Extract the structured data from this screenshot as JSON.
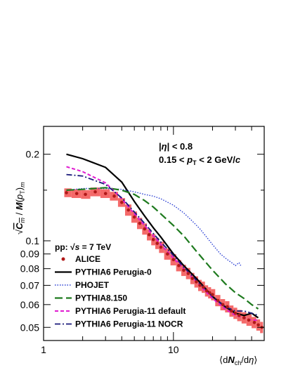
{
  "chart_data": {
    "type": "line",
    "xscale": "log",
    "yscale": "log",
    "xlim": [
      1,
      50
    ],
    "ylim": [
      0.045,
      0.25
    ],
    "x_ticks": [
      {
        "v": 1,
        "label": "1"
      },
      {
        "v": 10,
        "label": "10"
      }
    ],
    "y_ticks": [
      {
        "v": 0.05,
        "label": "0.05"
      },
      {
        "v": 0.06,
        "label": "0.06"
      },
      {
        "v": 0.07,
        "label": "0.07"
      },
      {
        "v": 0.08,
        "label": "0.08"
      },
      {
        "v": 0.09,
        "label": "0.09"
      },
      {
        "v": 0.1,
        "label": "0.1"
      },
      {
        "v": 0.2,
        "label": "0.2"
      }
    ],
    "x_minor": [
      2,
      3,
      4,
      5,
      6,
      7,
      8,
      9,
      20,
      30,
      40
    ],
    "y_minor": [
      0.15
    ],
    "xlabel": "⟨dN_ch/dη⟩",
    "ylabel": "√C_m / M(p_T)_m",
    "annotations": [
      "|η| < 0.8",
      "0.15 < p_T < 2 GeV/c"
    ],
    "legend_title": "pp:   √s = 7 TeV",
    "legend_position": "bottom-left",
    "data": {
      "name": "ALICE",
      "color": "#b01818",
      "band_color": "#f46a6a",
      "points": [
        [
          1.5,
          0.147
        ],
        [
          1.8,
          0.146
        ],
        [
          2.1,
          0.145
        ],
        [
          2.5,
          0.148
        ],
        [
          3.0,
          0.146
        ],
        [
          3.5,
          0.143
        ],
        [
          4.0,
          0.136
        ],
        [
          4.5,
          0.128
        ],
        [
          5.0,
          0.121
        ],
        [
          5.5,
          0.115
        ],
        [
          6.0,
          0.11
        ],
        [
          6.5,
          0.105
        ],
        [
          7.0,
          0.101
        ],
        [
          7.5,
          0.098
        ],
        [
          8.0,
          0.095
        ],
        [
          9.0,
          0.09
        ],
        [
          10.0,
          0.086
        ],
        [
          11.0,
          0.082
        ],
        [
          12.0,
          0.079
        ],
        [
          13.0,
          0.077
        ],
        [
          14.0,
          0.074
        ],
        [
          15.0,
          0.072
        ],
        [
          16.0,
          0.07
        ],
        [
          17.0,
          0.069
        ],
        [
          18.0,
          0.067
        ],
        [
          19.0,
          0.066
        ],
        [
          20.0,
          0.065
        ],
        [
          22.0,
          0.062
        ],
        [
          24.0,
          0.06
        ],
        [
          26.0,
          0.059
        ],
        [
          28.0,
          0.057
        ],
        [
          30.0,
          0.056
        ],
        [
          32.0,
          0.055
        ],
        [
          35.0,
          0.054
        ],
        [
          38.0,
          0.053
        ],
        [
          42.0,
          0.052
        ],
        [
          45.0,
          0.051
        ],
        [
          48.0,
          0.05
        ]
      ]
    },
    "series": [
      {
        "name": "PYTHIA6 Perugia-0",
        "color": "#000000",
        "dash": "",
        "width": 2.2,
        "points": [
          [
            1.5,
            0.2
          ],
          [
            2.0,
            0.193
          ],
          [
            3.0,
            0.18
          ],
          [
            4.0,
            0.16
          ],
          [
            5.0,
            0.137
          ],
          [
            6.0,
            0.122
          ],
          [
            7.0,
            0.111
          ],
          [
            8.0,
            0.103
          ],
          [
            10.0,
            0.09
          ],
          [
            12.0,
            0.082
          ],
          [
            15.0,
            0.074
          ],
          [
            20.0,
            0.064
          ],
          [
            25.0,
            0.059
          ],
          [
            30.0,
            0.056
          ],
          [
            35.0,
            0.055
          ],
          [
            40.0,
            0.056
          ],
          [
            45.0,
            0.054
          ]
        ]
      },
      {
        "name": "PHOJET",
        "color": "#2a3fd4",
        "dash": "1.5,2",
        "width": 1.4,
        "points": [
          [
            1.5,
            0.15
          ],
          [
            2.0,
            0.152
          ],
          [
            3.0,
            0.152
          ],
          [
            4.0,
            0.151
          ],
          [
            5.0,
            0.148
          ],
          [
            6.0,
            0.145
          ],
          [
            7.0,
            0.143
          ],
          [
            8.0,
            0.14
          ],
          [
            10.0,
            0.133
          ],
          [
            12.0,
            0.125
          ],
          [
            14.0,
            0.117
          ],
          [
            16.0,
            0.11
          ],
          [
            18.0,
            0.103
          ],
          [
            20.0,
            0.097
          ],
          [
            23.0,
            0.09
          ],
          [
            26.0,
            0.086
          ],
          [
            28.0,
            0.084
          ],
          [
            30.0,
            0.082
          ],
          [
            32.0,
            0.084
          ],
          [
            33.0,
            0.082
          ]
        ]
      },
      {
        "name": "PYTHIA8.150",
        "color": "#1e7a1e",
        "dash": "11,5",
        "width": 2.2,
        "points": [
          [
            1.5,
            0.15
          ],
          [
            2.0,
            0.151
          ],
          [
            3.0,
            0.153
          ],
          [
            4.0,
            0.15
          ],
          [
            5.0,
            0.145
          ],
          [
            6.0,
            0.138
          ],
          [
            7.0,
            0.131
          ],
          [
            8.0,
            0.124
          ],
          [
            10.0,
            0.113
          ],
          [
            12.0,
            0.104
          ],
          [
            15.0,
            0.092
          ],
          [
            20.0,
            0.079
          ],
          [
            25.0,
            0.071
          ],
          [
            30.0,
            0.066
          ],
          [
            35.0,
            0.063
          ],
          [
            40.0,
            0.06
          ],
          [
            45.0,
            0.058
          ]
        ]
      },
      {
        "name": "PYTHIA6 Perugia-11 default",
        "color": "#e01ad0",
        "dash": "5,3",
        "width": 2.0,
        "points": [
          [
            1.5,
            0.181
          ],
          [
            2.0,
            0.174
          ],
          [
            3.0,
            0.159
          ],
          [
            4.0,
            0.14
          ],
          [
            5.0,
            0.124
          ],
          [
            6.0,
            0.113
          ],
          [
            7.0,
            0.104
          ],
          [
            8.0,
            0.097
          ],
          [
            10.0,
            0.087
          ],
          [
            12.0,
            0.08
          ],
          [
            15.0,
            0.072
          ],
          [
            20.0,
            0.063
          ],
          [
            25.0,
            0.058
          ],
          [
            30.0,
            0.055
          ],
          [
            35.0,
            0.054
          ],
          [
            40.0,
            0.053
          ],
          [
            45.0,
            0.053
          ]
        ]
      },
      {
        "name": "PYTHIA6 Perugia-11 NOCR",
        "color": "#1a1a7a",
        "dash": "8,3,2,3",
        "width": 1.8,
        "points": [
          [
            1.5,
            0.17
          ],
          [
            2.0,
            0.168
          ],
          [
            3.0,
            0.157
          ],
          [
            4.0,
            0.141
          ],
          [
            5.0,
            0.126
          ],
          [
            6.0,
            0.115
          ],
          [
            7.0,
            0.106
          ],
          [
            8.0,
            0.099
          ],
          [
            10.0,
            0.089
          ],
          [
            12.0,
            0.081
          ],
          [
            15.0,
            0.073
          ],
          [
            20.0,
            0.064
          ],
          [
            25.0,
            0.059
          ],
          [
            30.0,
            0.057
          ],
          [
            35.0,
            0.057
          ],
          [
            40.0,
            0.056
          ],
          [
            45.0,
            0.055
          ]
        ]
      }
    ]
  }
}
